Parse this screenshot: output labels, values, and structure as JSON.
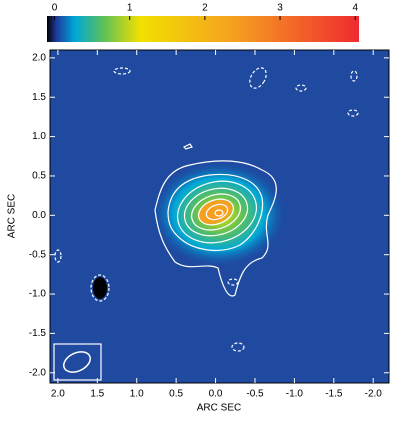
{
  "chart_data": {
    "type": "image",
    "xlabel": "ARC SEC",
    "ylabel": "ARC SEC",
    "xlim": [
      2.1,
      -2.2
    ],
    "ylim": [
      -2.13,
      2.1
    ],
    "xticks": [
      {
        "value": 2,
        "label": "2.0"
      },
      {
        "value": 1.5,
        "label": "1.5"
      },
      {
        "value": 1,
        "label": "1.0"
      },
      0.5,
      {
        "value": 0,
        "label": "0.0"
      },
      -0.5,
      {
        "value": -1,
        "label": "-1.0"
      },
      -1.5,
      {
        "value": -2,
        "label": "-2.0"
      }
    ],
    "yticks": [
      {
        "value": 2,
        "label": "2.0"
      },
      {
        "value": 1.5,
        "label": "1.5"
      },
      {
        "value": 1,
        "label": "1.0"
      },
      0.5,
      {
        "value": 0,
        "label": "0.0"
      },
      -0.5,
      {
        "value": -1,
        "label": "-1.0"
      },
      -1.5,
      {
        "value": -2,
        "label": "-2.0"
      }
    ],
    "colorbar": {
      "lim": [
        -0.1,
        4.05
      ],
      "ticks": [
        0,
        1,
        2,
        3,
        4
      ],
      "colormap": [
        "#000000",
        "#1d3a9c",
        "#00a8d8",
        "#5cc05a",
        "#f2e000",
        "#f5a020",
        "#f02a30"
      ]
    }
  }
}
